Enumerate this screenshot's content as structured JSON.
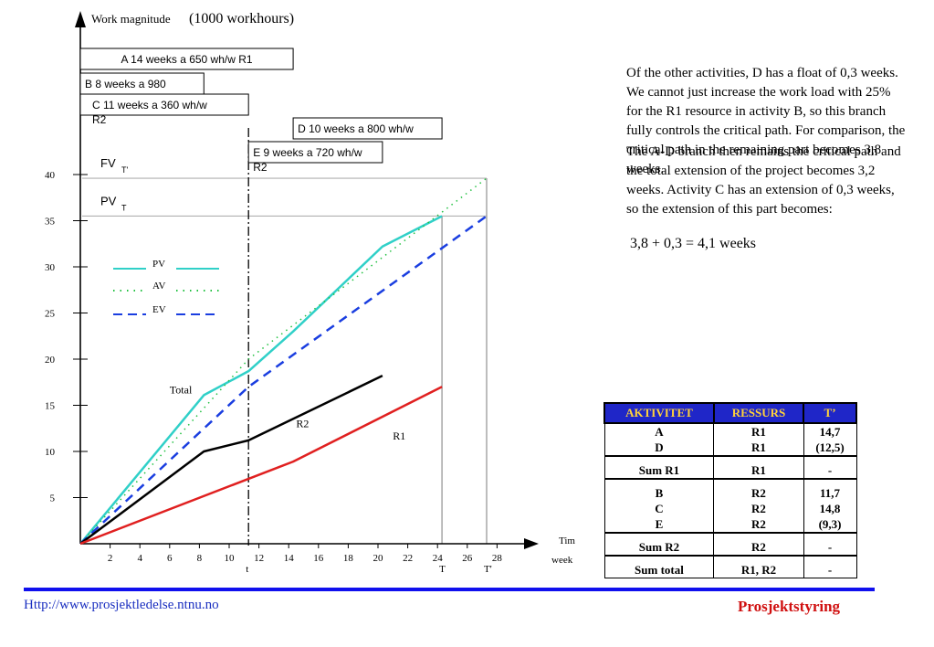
{
  "chart_data": {
    "type": "line",
    "ylabel_prefix": "Work magnitude",
    "ylabel_unit": "(1000 workhours)",
    "xlabel_line1": "Tim",
    "xlabel_line2": "week",
    "x_ticks": [
      2,
      4,
      6,
      8,
      10,
      12,
      14,
      16,
      18,
      20,
      22,
      24,
      26,
      28
    ],
    "y_ticks": [
      5,
      10,
      15,
      20,
      25,
      30,
      35,
      40
    ],
    "xlim": [
      0,
      30
    ],
    "ylim": [
      0,
      45
    ],
    "markers": [
      {
        "label": "t",
        "x": 11.3
      },
      {
        "label": "T",
        "x": 24.3
      },
      {
        "label": "T'",
        "x": 27.3
      }
    ],
    "levels": [
      {
        "label": "FV",
        "sub": "T'",
        "y": 39.6
      },
      {
        "label": "PV",
        "sub": "T",
        "y": 35.5
      }
    ],
    "activity_bars": [
      {
        "label": "A 14 weeks a 650 wh/w R1",
        "start": 0,
        "end": 14.3,
        "row": 0
      },
      {
        "label": "B 8 weeks a 980",
        "start": 0,
        "end": 8.3,
        "row": 1
      },
      {
        "label": "C 11 weeks a 360 wh/w",
        "sub": "R2",
        "start": 0,
        "end": 11.3,
        "row": 2
      },
      {
        "label": "D 10 weeks a 800 wh/w",
        "start": 14.3,
        "end": 24.3,
        "row": 3
      },
      {
        "label": "E 9 weeks a 720 wh/w",
        "sub": "R2",
        "start": 11.3,
        "end": 20.3,
        "row": 4
      }
    ],
    "legend": [
      {
        "name": "PV",
        "color": "#30d0c8",
        "dash": "solid"
      },
      {
        "name": "AV",
        "color": "#20c040",
        "dash": "dotted"
      },
      {
        "name": "EV",
        "color": "#1a3ee0",
        "dash": "dashed"
      }
    ],
    "series": [
      {
        "name": "PV",
        "color": "#30d0c8",
        "dash": "solid",
        "width": 2.5,
        "points": [
          [
            0,
            0
          ],
          [
            8.3,
            16.1
          ],
          [
            11.3,
            18.7
          ],
          [
            14.3,
            23.0
          ],
          [
            20.3,
            32.2
          ],
          [
            24.3,
            35.5
          ]
        ]
      },
      {
        "name": "AV",
        "color": "#20c040",
        "dash": "dotted",
        "width": 1.5,
        "points": [
          [
            0,
            0
          ],
          [
            11.3,
            20.0
          ],
          [
            27.3,
            39.6
          ]
        ]
      },
      {
        "name": "EV",
        "color": "#1a3ee0",
        "dash": "dashed",
        "width": 2.5,
        "points": [
          [
            0,
            0
          ],
          [
            11.3,
            17.0
          ],
          [
            27.3,
            35.5
          ]
        ]
      },
      {
        "name": "Total",
        "color": "#000000",
        "dash": "solid",
        "width": 2.5,
        "points": [
          [
            0,
            0
          ],
          [
            8.3,
            10.0
          ],
          [
            11.3,
            11.2
          ],
          [
            20.3,
            18.2
          ]
        ]
      },
      {
        "name": "R2",
        "color": "#000000",
        "dash": "none",
        "width": 0,
        "points": []
      },
      {
        "name": "R1",
        "color": "#e02020",
        "dash": "solid",
        "width": 2.5,
        "points": [
          [
            0,
            0
          ],
          [
            14.3,
            8.9
          ],
          [
            24.3,
            17.0
          ]
        ]
      }
    ],
    "curve_labels": [
      {
        "text": "Total",
        "x": 6.0,
        "y": 16.3
      },
      {
        "text": "R2",
        "x": 14.5,
        "y": 12.6
      },
      {
        "text": "R1",
        "x": 21.0,
        "y": 11.3
      }
    ]
  },
  "text": {
    "para1": "Of the other activities, D has a float of 0,3 weeks. We cannot just increase the work load with 25% for the R1 resource in activity B, so this branch fully controls the critical path. For comparison, the critical path in the remaining part becomes 3,8 weeks.",
    "para2": "The A-D branch then remains the critical path and the total extension of the project becomes 3,2 weeks. Activity C has an extension of 0,3 weeks, so the extension of this part becomes:",
    "calc": "3,8 + 0,3 = 4,1 weeks"
  },
  "table": {
    "headers": [
      "AKTIVITET",
      "RESSURS",
      "T’"
    ],
    "groups": [
      {
        "rows": [
          [
            "A",
            "R1",
            "14,7"
          ],
          [
            "D",
            "R1",
            "(12,5)"
          ]
        ]
      },
      {
        "rows": [
          [
            "Sum R1",
            "R1",
            "-"
          ]
        ]
      },
      {
        "rows": [
          [
            "B",
            "R2",
            "11,7"
          ],
          [
            "C",
            "R2",
            "14,8"
          ],
          [
            "E",
            "R2",
            "(9,3)"
          ]
        ]
      },
      {
        "rows": [
          [
            "Sum R2",
            "R2",
            "-"
          ]
        ]
      },
      {
        "rows": [
          [
            "Sum total",
            "R1, R2",
            "-"
          ]
        ]
      }
    ]
  },
  "footer": {
    "url": "Http://www.prosjektledelse.ntnu.no",
    "brand": "Prosjektstyring",
    "line_color": "#1010ee"
  }
}
